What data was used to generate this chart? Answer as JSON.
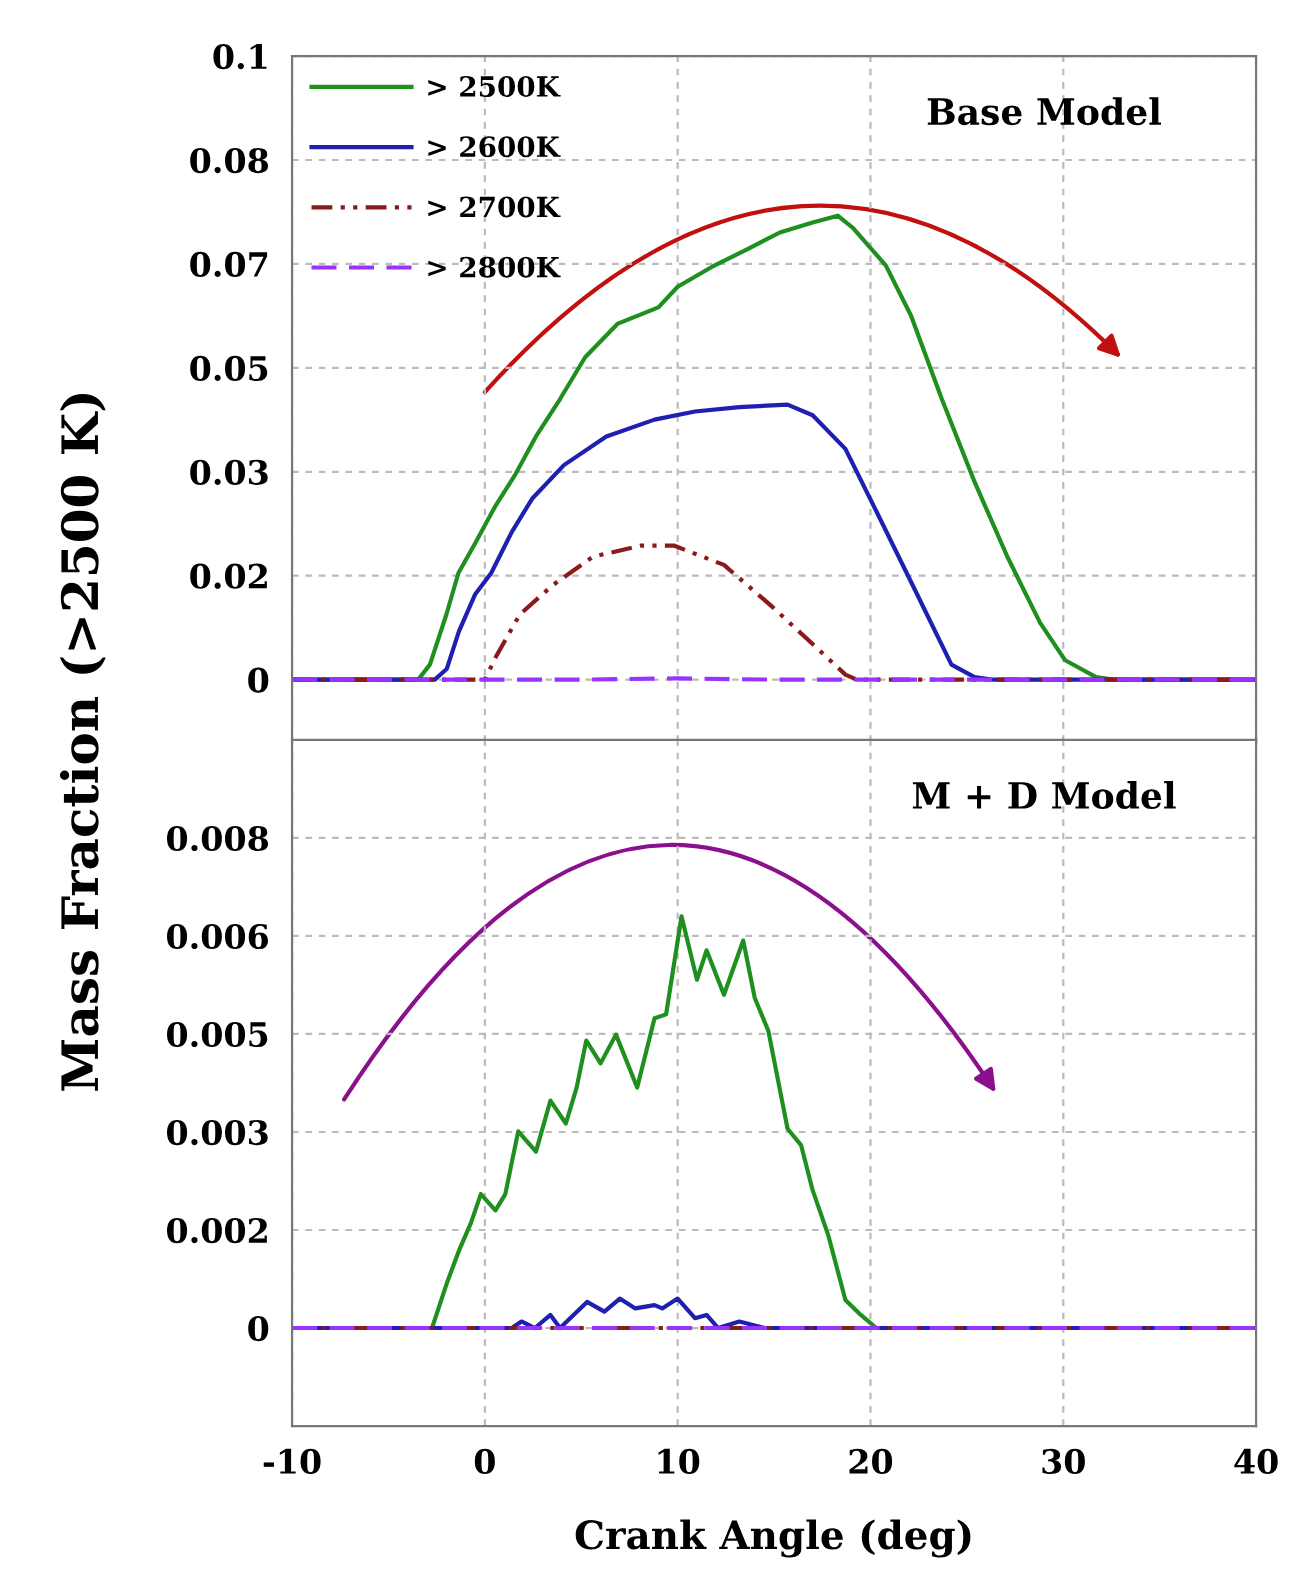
{
  "chart_data": [
    {
      "type": "line",
      "title": "Base Model",
      "ylabel": "Mass Fraction (>2500 K)",
      "series": [
        {
          "name": "> 2500K",
          "color": "#1f8f1f",
          "line_style": "solid",
          "x": [
            -10,
            -3.46,
            -2.85,
            -2.0,
            -1.37,
            -0.53,
            0.52,
            1.6,
            2.65,
            3.9,
            5.2,
            6.9,
            9.0,
            10.0,
            11.9,
            13.6,
            15.3,
            17.0,
            18.3,
            19.1,
            20.8,
            22.1,
            23.7,
            25.4,
            27.1,
            28.8,
            30.1,
            31.7,
            32.6,
            40
          ],
          "values": [
            0,
            0,
            0.0024,
            0.0104,
            0.0171,
            0.0217,
            0.0277,
            0.033,
            0.039,
            0.045,
            0.0517,
            0.0571,
            0.0597,
            0.063,
            0.0664,
            0.069,
            0.0717,
            0.0733,
            0.0744,
            0.0724,
            0.0664,
            0.0584,
            0.045,
            0.0317,
            0.0197,
            0.0091,
            0.0031,
            0.0004,
            0,
            0
          ]
        },
        {
          "name": "> 2600K",
          "color": "#1f1fb0",
          "line_style": "solid",
          "x": [
            -10,
            -2.6,
            -1.98,
            -1.35,
            -0.5,
            0.33,
            1.4,
            2.45,
            4.1,
            6.3,
            8.8,
            10.9,
            13.2,
            15.7,
            17.0,
            18.7,
            20.4,
            22.1,
            24.2,
            25.4,
            26.3,
            40
          ],
          "values": [
            0,
            0,
            0.0017,
            0.0077,
            0.0137,
            0.0171,
            0.0237,
            0.029,
            0.0344,
            0.039,
            0.0417,
            0.043,
            0.0437,
            0.0441,
            0.0424,
            0.037,
            0.0264,
            0.0157,
            0.0024,
            0.0004,
            0,
            0
          ]
        },
        {
          "name": "> 2700K",
          "color": "#8b1a1a",
          "line_style": "dashdot",
          "x": [
            -10,
            0,
            0.58,
            1.8,
            3.5,
            5.6,
            8.1,
            9.8,
            12.4,
            14.9,
            17.0,
            18.7,
            19.3,
            40
          ],
          "values": [
            0,
            0,
            0.0037,
            0.0104,
            0.0151,
            0.0197,
            0.0215,
            0.0215,
            0.0184,
            0.0117,
            0.0057,
            0.0008,
            0,
            0
          ]
        },
        {
          "name": "> 2800K",
          "color": "#9933ff",
          "line_style": "dashed",
          "x": [
            -10,
            5,
            10,
            15,
            40
          ],
          "values": [
            0,
            0,
            0.0002,
            0,
            0
          ]
        }
      ],
      "xlim": [
        -10,
        40
      ],
      "xticks": [
        -10,
        0,
        10,
        20,
        30,
        40
      ],
      "ylim": [
        -0.01,
        0.1
      ],
      "yticks": [
        0,
        {
          "value": 0.01667,
          "label": "0.02"
        },
        {
          "value": 0.03333,
          "label": "0.03"
        },
        0.05,
        {
          "value": 0.06667,
          "label": "0.07"
        },
        {
          "value": 0.08333,
          "label": "0.08"
        },
        0.1
      ],
      "grid": true,
      "legend": "top left",
      "tick_labels": "y"
    },
    {
      "type": "line",
      "title": "M + D Model",
      "xlabel": "Crank Angle (deg)",
      "series": [
        {
          "color": "#1f8f1f",
          "line_style": "solid",
          "x": [
            -10,
            -2.74,
            -1.98,
            -1.35,
            -0.72,
            -0.21,
            0.55,
            1.06,
            1.73,
            2.65,
            3.4,
            4.2,
            4.76,
            5.26,
            6.0,
            6.8,
            7.9,
            8.8,
            9.4,
            10.2,
            11.0,
            11.5,
            12.4,
            13.4,
            14.0,
            14.7,
            15.7,
            16.4,
            17.0,
            17.8,
            18.7,
            19.5,
            20.3,
            40
          ],
          "values": [
            0,
            0,
            0.00068,
            0.00118,
            0.00161,
            0.00205,
            0.0018,
            0.00205,
            0.00301,
            0.0027,
            0.00348,
            0.00313,
            0.00368,
            0.0044,
            0.00405,
            0.00449,
            0.00368,
            0.00474,
            0.0048,
            0.0063,
            0.00533,
            0.00578,
            0.0051,
            0.00593,
            0.00505,
            0.00455,
            0.00305,
            0.0028,
            0.00211,
            0.00143,
            0.00043,
            0.0002,
            0,
            0
          ]
        },
        {
          "color": "#1f1fb0",
          "line_style": "solid",
          "x": [
            -10,
            1.4,
            1.9,
            2.6,
            3.4,
            3.9,
            5.3,
            6.2,
            7.0,
            7.8,
            8.8,
            9.2,
            10.0,
            10.9,
            11.5,
            12.1,
            13.2,
            14.5,
            40
          ],
          "values": [
            0,
            0,
            0.0001,
            0,
            0.0002,
            0,
            0.0004,
            0.00025,
            0.00045,
            0.0003,
            0.00035,
            0.0003,
            0.00045,
            0.00015,
            0.0002,
            0,
            0.0001,
            0,
            0
          ]
        },
        {
          "color": "#8b1a1a",
          "line_style": "dashdot",
          "x": [
            -10,
            40
          ],
          "values": [
            0,
            0
          ]
        },
        {
          "color": "#9933ff",
          "line_style": "dashed",
          "x": [
            -10,
            40
          ],
          "values": [
            0,
            0
          ]
        }
      ],
      "xlim": [
        -10,
        40
      ],
      "xticks": [
        -10,
        0,
        10,
        20,
        30,
        40
      ],
      "ylim": [
        -0.0015,
        0.009
      ],
      "yticks": [
        0,
        {
          "value": 0.0015,
          "label": "0.002"
        },
        0.003,
        {
          "value": 0.0045,
          "label": "0.005"
        },
        0.006,
        {
          "value": 0.0075,
          "label": "0.008"
        }
      ],
      "grid": true
    }
  ]
}
